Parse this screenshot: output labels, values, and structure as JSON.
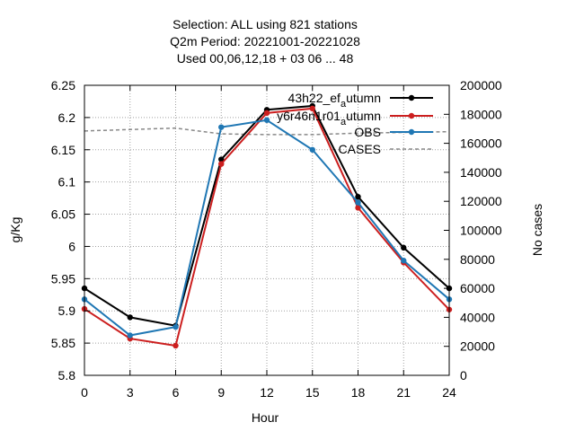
{
  "chart_data": {
    "type": "line",
    "title_lines": [
      "Selection: ALL using   821 stations",
      "Q2m   Period: 20221001-20221028",
      "Used  00,06,12,18  + 03 06 ... 48"
    ],
    "xlabel": "Hour",
    "ylabel": "g/Kg",
    "y2label": "No cases",
    "x": [
      0,
      3,
      6,
      9,
      12,
      15,
      18,
      21,
      24
    ],
    "xlim": [
      0,
      24
    ],
    "ylim": [
      5.8,
      6.25
    ],
    "y2lim": [
      0,
      200000
    ],
    "xticks": [
      "0",
      "3",
      "6",
      "9",
      "12",
      "15",
      "18",
      "21",
      "24"
    ],
    "yticks": [
      "5.8",
      "5.85",
      "5.9",
      "5.95",
      "6",
      "6.05",
      "6.1",
      "6.15",
      "6.2",
      "6.25"
    ],
    "y2ticks": [
      "0",
      "20000",
      "40000",
      "60000",
      "80000",
      "100000",
      "120000",
      "140000",
      "160000",
      "180000",
      "200000"
    ],
    "grid": true,
    "legend_position": "top-right",
    "series": [
      {
        "name": "43h22_efa_autumn",
        "label_main": "43h22_ef",
        "label_sub": "a",
        "label_tail": "utumn",
        "color": "#000000",
        "axis": "y",
        "values": [
          5.935,
          5.89,
          5.877,
          6.135,
          6.212,
          6.218,
          6.077,
          5.998,
          5.935
        ]
      },
      {
        "name": "y6r46n1r01_a_autumn",
        "label_main": "y6r46n1r01",
        "label_sub": "a",
        "label_tail": "utumn",
        "color": "#cc1f1f",
        "axis": "y",
        "values": [
          5.903,
          5.857,
          5.846,
          6.128,
          6.207,
          6.214,
          6.06,
          5.975,
          5.902
        ]
      },
      {
        "name": "OBS",
        "label_main": "OBS",
        "label_sub": "",
        "label_tail": "",
        "color": "#1f77b4",
        "axis": "y",
        "values": [
          5.918,
          5.862,
          5.875,
          6.185,
          6.196,
          6.15,
          6.068,
          5.978,
          5.918
        ]
      },
      {
        "name": "CASES",
        "label_main": "CASES",
        "label_sub": "",
        "label_tail": "",
        "color": "#888888",
        "axis": "y2",
        "dashed": true,
        "values": [
          168500,
          169500,
          170500,
          166500,
          166000,
          166000,
          167000,
          167500,
          168000
        ]
      }
    ]
  }
}
